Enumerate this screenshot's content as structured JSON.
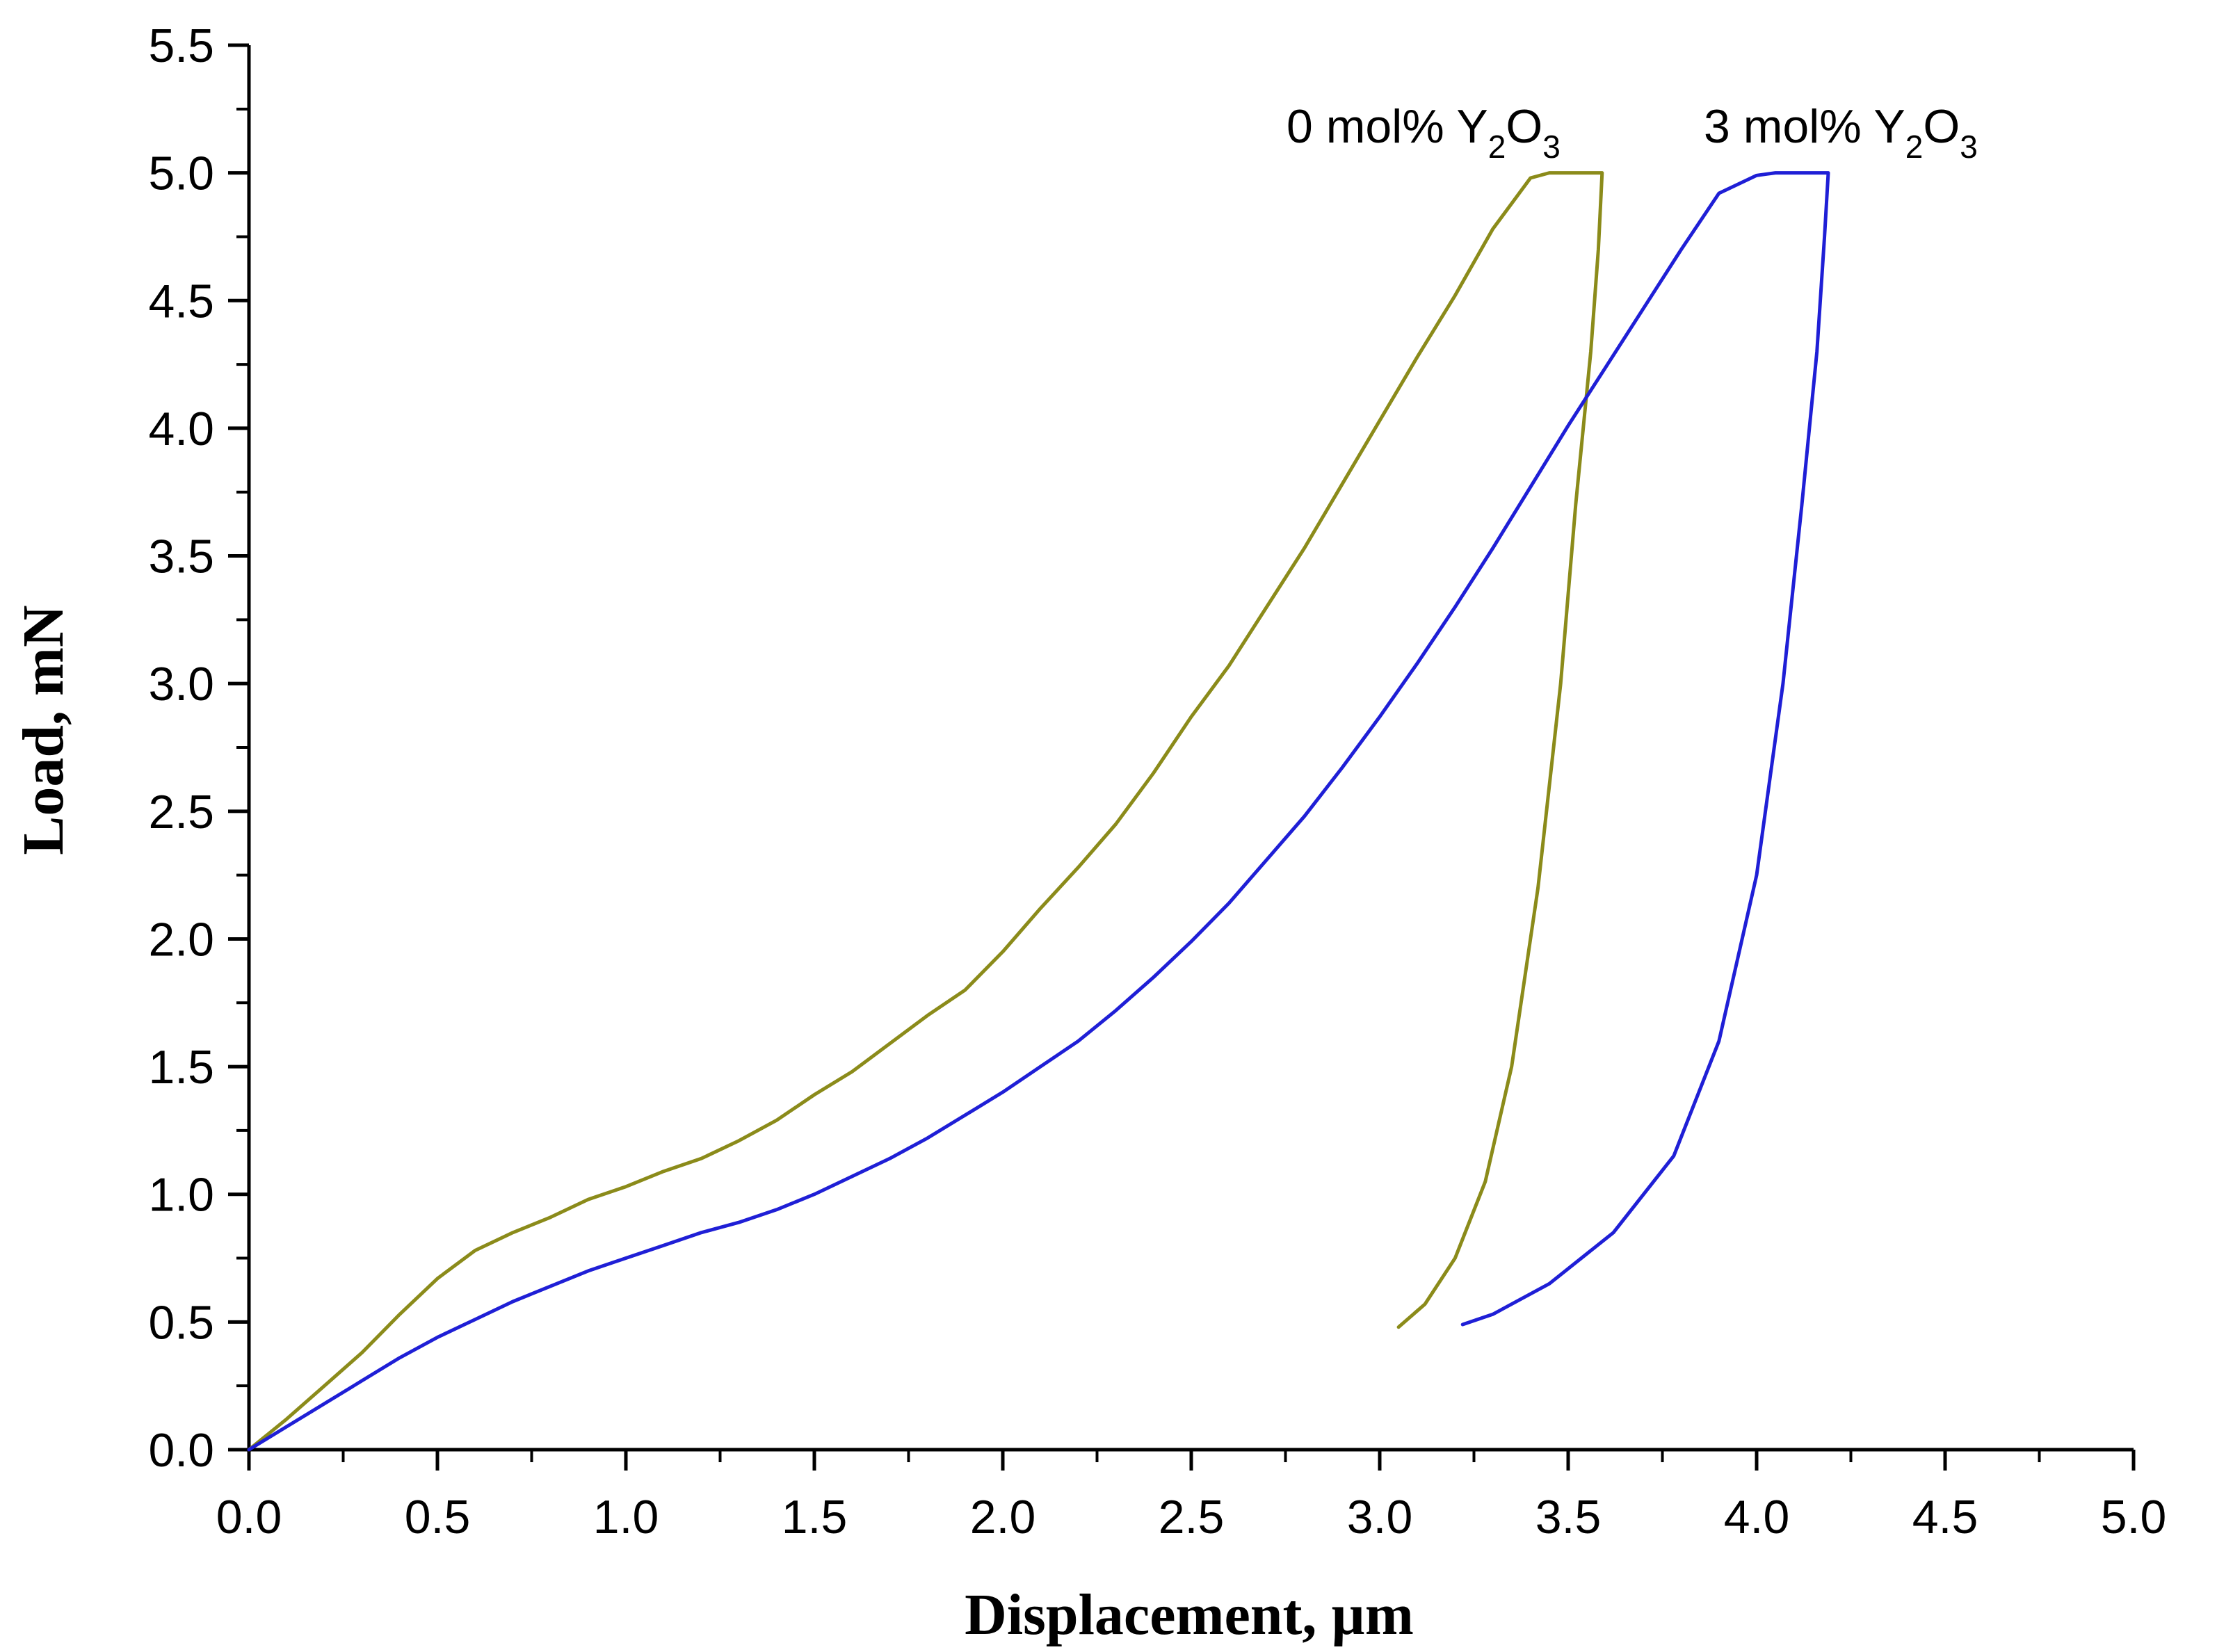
{
  "chart_data": {
    "type": "line",
    "title": "",
    "xlabel": "Displacement, µm",
    "ylabel": "Load, mN",
    "xlim": [
      0.0,
      5.0
    ],
    "ylim": [
      0.0,
      5.5
    ],
    "xticks": [
      "0.0",
      "0.5",
      "1.0",
      "1.5",
      "2.0",
      "2.5",
      "3.0",
      "3.5",
      "4.0",
      "4.5",
      "5.0"
    ],
    "yticks": [
      "0.0",
      "0.5",
      "1.0",
      "1.5",
      "2.0",
      "2.5",
      "3.0",
      "3.5",
      "4.0",
      "4.5",
      "5.0",
      "5.5"
    ],
    "grid": false,
    "series": [
      {
        "name": "0 mol% Y2O3",
        "label": {
          "main": "0 mol% Y",
          "sub1": "2",
          "mid": "O",
          "sub2": "3"
        },
        "color": "#8b8b1a",
        "x": [
          0.0,
          0.1,
          0.2,
          0.3,
          0.4,
          0.5,
          0.6,
          0.7,
          0.8,
          0.9,
          1.0,
          1.1,
          1.2,
          1.3,
          1.4,
          1.5,
          1.6,
          1.7,
          1.8,
          1.9,
          2.0,
          2.1,
          2.2,
          2.3,
          2.4,
          2.5,
          2.6,
          2.7,
          2.8,
          2.9,
          3.0,
          3.1,
          3.2,
          3.3,
          3.4,
          3.45,
          3.5,
          3.55,
          3.58,
          3.59,
          3.58,
          3.56,
          3.52,
          3.48,
          3.42,
          3.35,
          3.28,
          3.2,
          3.12,
          3.05
        ],
        "y": [
          0.0,
          0.12,
          0.25,
          0.38,
          0.53,
          0.67,
          0.78,
          0.85,
          0.91,
          0.98,
          1.03,
          1.09,
          1.14,
          1.21,
          1.29,
          1.39,
          1.48,
          1.59,
          1.7,
          1.8,
          1.95,
          2.12,
          2.28,
          2.45,
          2.65,
          2.87,
          3.07,
          3.3,
          3.53,
          3.78,
          4.03,
          4.28,
          4.52,
          4.78,
          4.98,
          5.0,
          5.0,
          5.0,
          5.0,
          5.0,
          4.7,
          4.3,
          3.7,
          3.0,
          2.2,
          1.5,
          1.05,
          0.75,
          0.57,
          0.48
        ]
      },
      {
        "name": "3 mol% Y2O3",
        "label": {
          "main": "3 mol% Y",
          "sub1": "2",
          "mid": "O",
          "sub2": "3"
        },
        "color": "#1f1fd6",
        "x": [
          0.0,
          0.1,
          0.2,
          0.3,
          0.4,
          0.5,
          0.6,
          0.7,
          0.8,
          0.9,
          1.0,
          1.1,
          1.2,
          1.3,
          1.4,
          1.5,
          1.6,
          1.7,
          1.8,
          1.9,
          2.0,
          2.1,
          2.2,
          2.3,
          2.4,
          2.5,
          2.6,
          2.7,
          2.8,
          2.9,
          3.0,
          3.1,
          3.2,
          3.3,
          3.4,
          3.5,
          3.6,
          3.7,
          3.8,
          3.9,
          4.0,
          4.05,
          4.1,
          4.15,
          4.18,
          4.19,
          4.18,
          4.16,
          4.12,
          4.07,
          4.0,
          3.9,
          3.78,
          3.62,
          3.45,
          3.3,
          3.22
        ],
        "y": [
          0.0,
          0.09,
          0.18,
          0.27,
          0.36,
          0.44,
          0.51,
          0.58,
          0.64,
          0.7,
          0.75,
          0.8,
          0.85,
          0.89,
          0.94,
          1.0,
          1.07,
          1.14,
          1.22,
          1.31,
          1.4,
          1.5,
          1.6,
          1.72,
          1.85,
          1.99,
          2.14,
          2.31,
          2.48,
          2.67,
          2.87,
          3.08,
          3.3,
          3.53,
          3.77,
          4.01,
          4.24,
          4.47,
          4.7,
          4.92,
          4.99,
          5.0,
          5.0,
          5.0,
          5.0,
          5.0,
          4.75,
          4.3,
          3.7,
          3.0,
          2.25,
          1.6,
          1.15,
          0.85,
          0.65,
          0.53,
          0.49
        ]
      }
    ]
  }
}
